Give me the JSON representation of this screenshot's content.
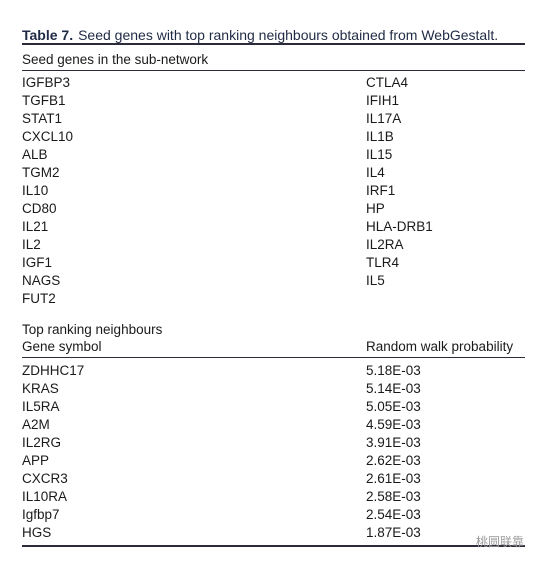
{
  "caption": {
    "label": "Table 7.",
    "text": "Seed genes with top ranking neighbours obtained from WebGestalt."
  },
  "seed_section": {
    "title": "Seed genes in the sub-network",
    "left": [
      "IGFBP3",
      "TGFB1",
      "STAT1",
      "CXCL10",
      "ALB",
      "TGM2",
      "IL10",
      "CD80",
      "IL21",
      "IL2",
      "IGF1",
      "NAGS",
      "FUT2"
    ],
    "right": [
      "CTLA4",
      "IFIH1",
      "IL17A",
      "IL1B",
      "IL15",
      "IL4",
      "IRF1",
      "HP",
      "HLA-DRB1",
      "IL2RA",
      "TLR4",
      "IL5"
    ]
  },
  "neighbour_section": {
    "title": "Top ranking neighbours",
    "columns": [
      "Gene symbol",
      "Random walk probability"
    ],
    "rows": [
      [
        "ZDHHC17",
        "5.18E-03"
      ],
      [
        "KRAS",
        "5.14E-03"
      ],
      [
        "IL5RA",
        "5.05E-03"
      ],
      [
        "A2M",
        "4.59E-03"
      ],
      [
        "IL2RG",
        "3.91E-03"
      ],
      [
        "APP",
        "2.62E-03"
      ],
      [
        "CXCR3",
        "2.61E-03"
      ],
      [
        "IL10RA",
        "2.58E-03"
      ],
      [
        "Igfbp7",
        "2.54E-03"
      ],
      [
        "HGS",
        "1.87E-03"
      ]
    ]
  },
  "watermark": "桃圆联靠"
}
